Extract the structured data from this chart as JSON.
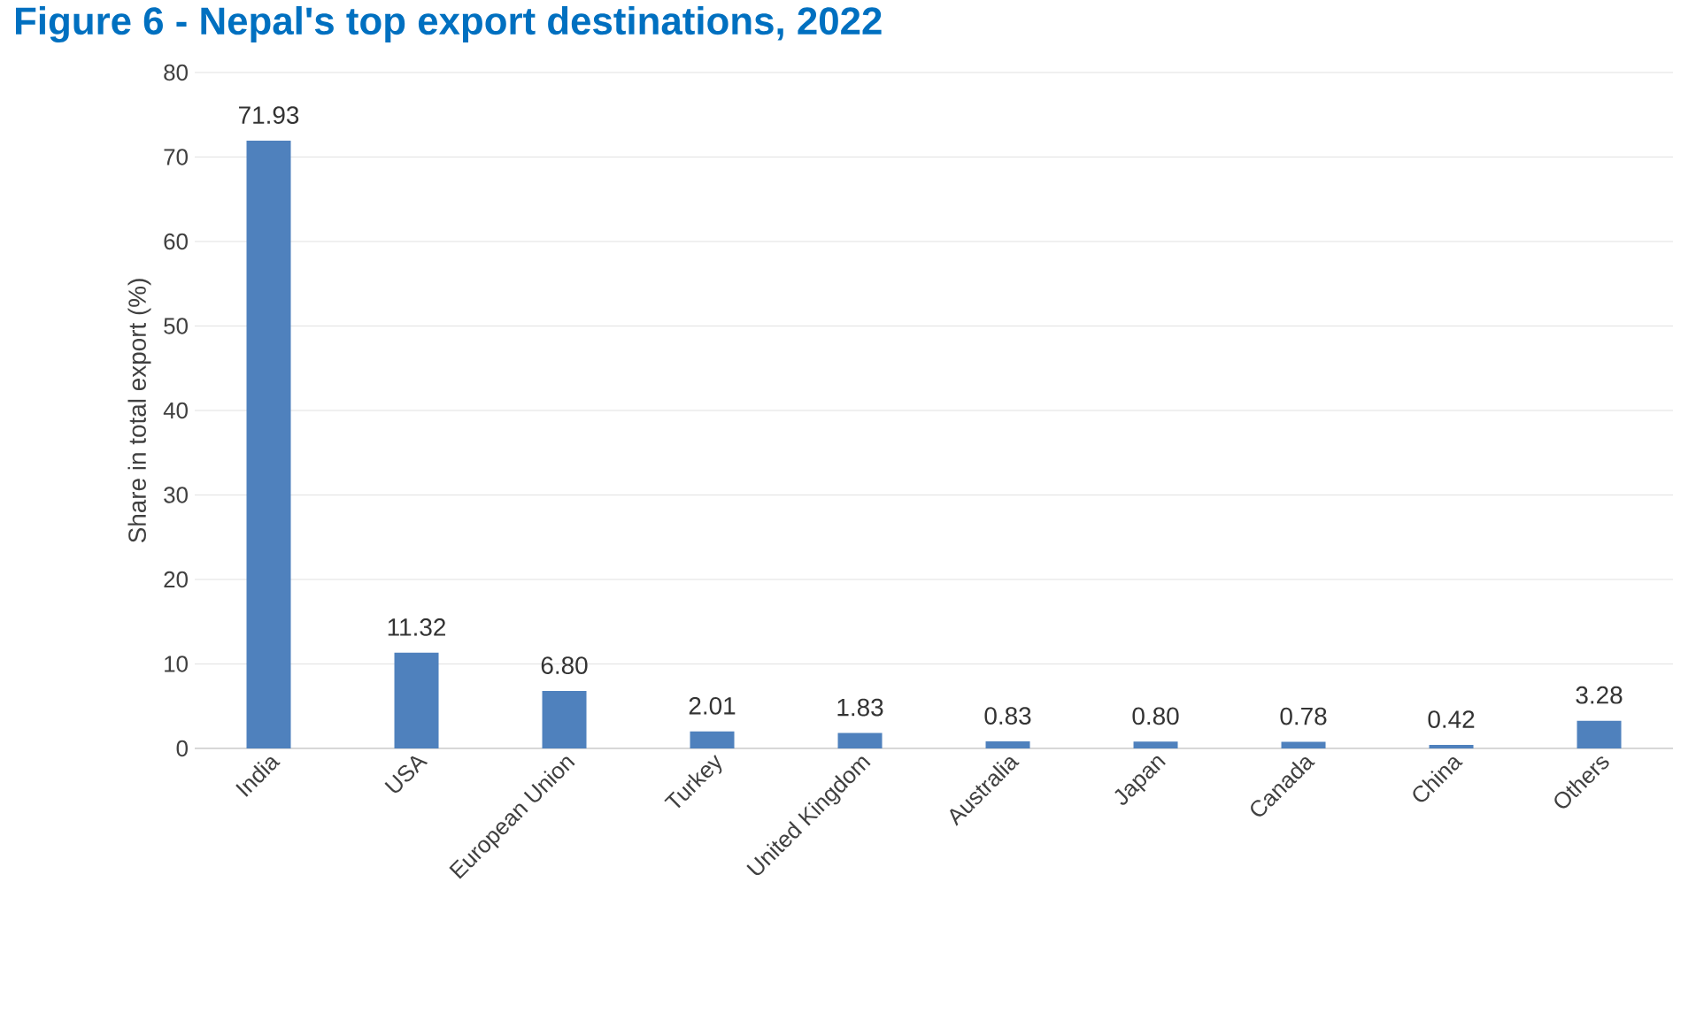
{
  "chart_data": {
    "type": "bar",
    "title": "Figure 6 - Nepal's top export destinations, 2022",
    "ylabel": "Share in total export (%)",
    "categories": [
      "India",
      "USA",
      "European Union",
      "Turkey",
      "United Kingdom",
      "Australia",
      "Japan",
      "Canada",
      "China",
      "Others"
    ],
    "values": [
      71.93,
      11.32,
      6.8,
      2.01,
      1.83,
      0.83,
      0.8,
      0.78,
      0.42,
      3.28
    ],
    "value_labels": [
      "71.93",
      "11.32",
      "6.80",
      "2.01",
      "1.83",
      "0.83",
      "0.80",
      "0.78",
      "0.42",
      "3.28"
    ],
    "color": "#4f81bd",
    "ylim": [
      0,
      80
    ],
    "yticks": [
      0,
      10,
      20,
      30,
      40,
      50,
      60,
      70,
      80
    ],
    "grid": "y"
  }
}
